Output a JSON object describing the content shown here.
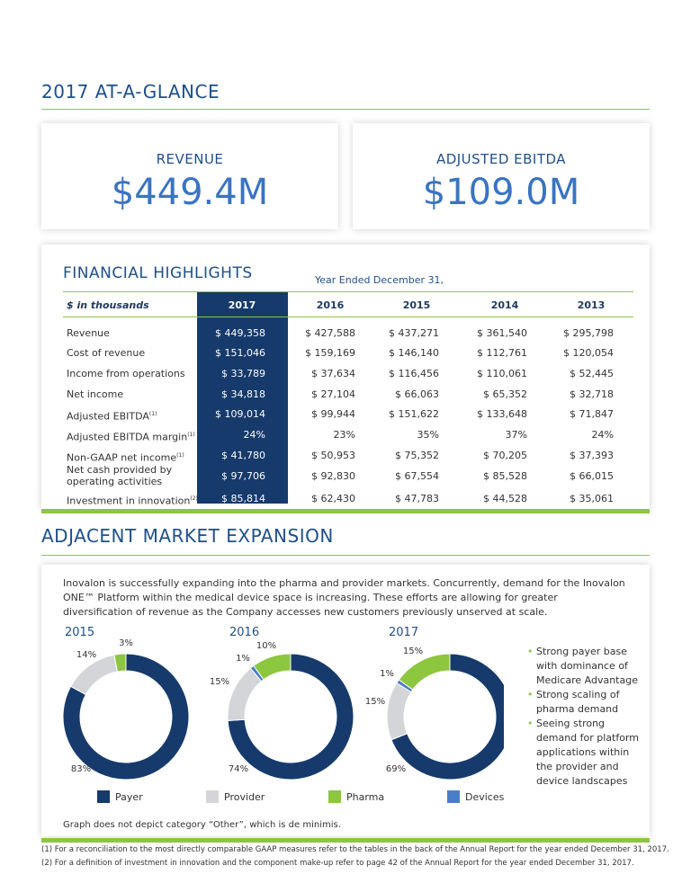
{
  "header": {
    "title": "2017 AT-A-GLANCE"
  },
  "kpis": [
    {
      "label": "REVENUE",
      "value": "$449.4M"
    },
    {
      "label": "ADJUSTED EBITDA",
      "value": "$109.0M"
    }
  ],
  "table": {
    "title": "FINANCIAL HIGHLIGHTS",
    "period": "Year Ended December 31,",
    "columns": [
      "$ in thousands",
      "2017",
      "2016",
      "2015",
      "2014",
      "2013"
    ],
    "rows": [
      {
        "label": "Revenue",
        "cells": [
          "$ 449,358",
          "$ 427,588",
          "$ 437,271",
          "$ 361,540",
          "$ 295,798"
        ]
      },
      {
        "label": "Cost of revenue",
        "cells": [
          "$ 151,046",
          "$ 159,169",
          "$ 146,140",
          "$ 112,761",
          "$ 120,054"
        ]
      },
      {
        "label": "Income from operations",
        "cells": [
          "$ 33,789",
          "$ 37,634",
          "$ 116,456",
          "$ 110,061",
          "$ 52,445"
        ]
      },
      {
        "label": "Net income",
        "cells": [
          "$ 34,818",
          "$ 27,104",
          "$ 66,063",
          "$ 65,352",
          "$ 32,718"
        ]
      },
      {
        "label": "Adjusted EBITDA",
        "note": "(1)",
        "cells": [
          "$ 109,014",
          "$ 99,944",
          "$ 151,622",
          "$ 133,648",
          "$ 71,847"
        ]
      },
      {
        "label": "Adjusted EBITDA margin",
        "note": "(1)",
        "cells": [
          "24%",
          "23%",
          "35%",
          "37%",
          "24%"
        ]
      },
      {
        "label": "Non-GAAP net income",
        "note": "(1)",
        "cells": [
          "$ 41,780",
          "$ 50,953",
          "$ 75,352",
          "$ 70,205",
          "$ 37,393"
        ]
      },
      {
        "label": "Net cash provided by operating activities",
        "cells": [
          "$ 97,706",
          "$ 92,830",
          "$ 67,554",
          "$ 85,528",
          "$ 66,015"
        ]
      },
      {
        "label": "Investment in innovation",
        "note": "(2)",
        "cells": [
          "$ 85,814",
          "$ 62,430",
          "$ 47,783",
          "$ 44,528",
          "$ 35,061"
        ]
      }
    ]
  },
  "section": {
    "title": "ADJACENT MARKET EXPANSION",
    "intro": "Inovalon is successfully expanding into the pharma and provider markets. Concurrently, demand for the Inovalon ONE™ Platform within the medical device space is increasing. These efforts are allowing for greater diversification of revenue as the Company accesses new customers previously unserved at scale.",
    "bullets": [
      "Strong payer base with dominance of Medicare Advantage",
      "Strong scaling of pharma demand",
      "Seeing strong demand for platform applications within the provider and device landscapes"
    ],
    "note": "Graph does not depict category “Other”, which is de minimis."
  },
  "donuts": {
    "type": "donut",
    "categories": [
      "Payer",
      "Provider",
      "Devices",
      "Pharma"
    ],
    "colors": [
      "#163a6b",
      "#d3d5d8",
      "#4a7fc8",
      "#8dc63f"
    ],
    "charts": [
      {
        "title": "2015",
        "values": [
          83,
          14,
          null,
          3
        ],
        "value_labels": [
          "83%",
          "14%",
          null,
          "3%"
        ]
      },
      {
        "title": "2016",
        "values": [
          74,
          15,
          1,
          10
        ],
        "value_labels": [
          "74%",
          "15%",
          "1%",
          "10%"
        ]
      },
      {
        "title": "2017",
        "values": [
          69,
          15,
          1,
          15
        ],
        "value_labels": [
          "69%",
          "15%",
          "1%",
          "15%"
        ]
      }
    ]
  },
  "footnotes": [
    "(1)   For a reconciliation to the most directly comparable GAAP measures refer to the tables in the back of the Annual Report for the year ended December 31, 2017.",
    "(2)   For a definition of investment in innovation and the component make-up refer to page 42 of the Annual Report for the year ended December 31, 2017."
  ]
}
